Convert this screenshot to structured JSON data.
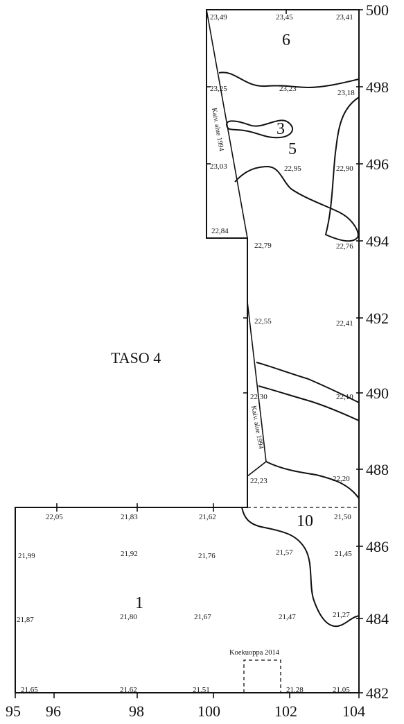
{
  "title": "TASO 4",
  "x_axis_labels": [
    "95",
    "96",
    "98",
    "100",
    "102",
    "104"
  ],
  "y_axis_labels": [
    "500",
    "498",
    "496",
    "494",
    "492",
    "490",
    "488",
    "486",
    "484",
    "482"
  ],
  "layers": [
    "6",
    "3",
    "5",
    "10",
    "1"
  ],
  "elevations": [
    "23,49",
    "23,45",
    "23,41",
    "23,25",
    "23,23",
    "23,18",
    "23,03",
    "22,95",
    "22,90",
    "22,84",
    "22,79",
    "22,76",
    "22,55",
    "22,41",
    "22,30",
    "22,10",
    "22,23",
    "22,20",
    "22,05",
    "21,83",
    "21,62",
    "21,50",
    "21,99",
    "21,92",
    "21,76",
    "21,57",
    "21,45",
    "21,87",
    "21,80",
    "21,67",
    "21,47",
    "21,27",
    "21,65",
    "21,62",
    "21,51",
    "21,28",
    "21,05"
  ],
  "excavation_note_upper": "Kaiv. alue 1994",
  "excavation_note_lower": "Kaiv. alue 1994",
  "test_pit_label": "Koekuoppa 2014"
}
